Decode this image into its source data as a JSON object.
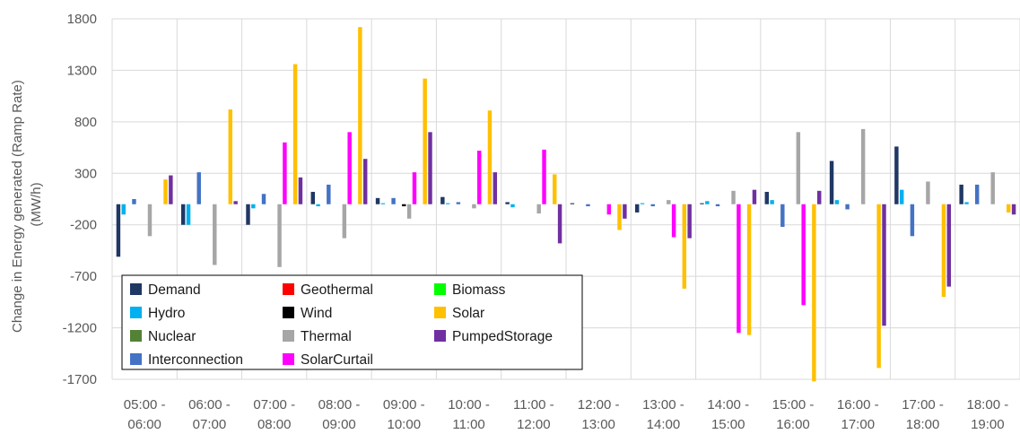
{
  "chart_data": {
    "type": "bar",
    "ylabel_lines": [
      "Change in Energy generated (Ramp Rate)",
      "(MW/h)"
    ],
    "ylim": [
      -1700,
      1800
    ],
    "yticks": [
      1800,
      1300,
      800,
      300,
      -200,
      -700,
      -1200,
      -1700
    ],
    "grid": true,
    "legend_position": "bottom-left",
    "categories": [
      [
        "05:00 -",
        "06:00"
      ],
      [
        "06:00 -",
        "07:00"
      ],
      [
        "07:00 -",
        "08:00"
      ],
      [
        "08:00 -",
        "09:00"
      ],
      [
        "09:00 -",
        "10:00"
      ],
      [
        "10:00 -",
        "11:00"
      ],
      [
        "11:00 -",
        "12:00"
      ],
      [
        "12:00 -",
        "13:00"
      ],
      [
        "13:00 -",
        "14:00"
      ],
      [
        "14:00 -",
        "15:00"
      ],
      [
        "15:00 -",
        "16:00"
      ],
      [
        "16:00 -",
        "17:00"
      ],
      [
        "17:00 -",
        "18:00"
      ],
      [
        "18:00 -",
        "19:00"
      ]
    ],
    "series": [
      {
        "name": "Demand",
        "color": "#1f3864",
        "values": [
          -510,
          -200,
          -200,
          120,
          60,
          70,
          20,
          10,
          -80,
          10,
          120,
          420,
          560,
          190
        ]
      },
      {
        "name": "Hydro",
        "color": "#00b0f0",
        "values": [
          -100,
          -200,
          -40,
          -20,
          10,
          10,
          -30,
          0,
          10,
          30,
          40,
          40,
          140,
          20
        ]
      },
      {
        "name": "Nuclear",
        "color": "#548235",
        "values": [
          0,
          0,
          0,
          0,
          0,
          0,
          0,
          0,
          0,
          0,
          0,
          0,
          0,
          0
        ]
      },
      {
        "name": "Interconnection",
        "color": "#4472c4",
        "values": [
          50,
          310,
          100,
          190,
          60,
          20,
          0,
          -20,
          -20,
          -20,
          -220,
          -50,
          -310,
          190
        ]
      },
      {
        "name": "Geothermal",
        "color": "#ff0000",
        "values": [
          0,
          0,
          0,
          0,
          0,
          0,
          0,
          0,
          0,
          0,
          0,
          0,
          0,
          0
        ]
      },
      {
        "name": "Wind",
        "color": "#000000",
        "values": [
          0,
          0,
          0,
          0,
          -20,
          0,
          0,
          0,
          0,
          0,
          0,
          0,
          0,
          0
        ]
      },
      {
        "name": "Thermal",
        "color": "#a6a6a6",
        "values": [
          -310,
          -590,
          -610,
          -330,
          -140,
          -40,
          -90,
          0,
          40,
          130,
          700,
          730,
          220,
          310
        ]
      },
      {
        "name": "SolarCurtail",
        "color": "#ff00ff",
        "values": [
          0,
          0,
          600,
          700,
          310,
          520,
          530,
          -100,
          -320,
          -1250,
          -980,
          0,
          0,
          0
        ]
      },
      {
        "name": "Biomass",
        "color": "#00ff00",
        "values": [
          0,
          0,
          0,
          0,
          0,
          0,
          0,
          0,
          0,
          0,
          0,
          0,
          0,
          0
        ]
      },
      {
        "name": "Solar",
        "color": "#ffc000",
        "values": [
          240,
          920,
          1360,
          1720,
          1220,
          910,
          290,
          -250,
          -820,
          -1270,
          -1720,
          -1590,
          -900,
          -80
        ]
      },
      {
        "name": "PumpedStorage",
        "color": "#7030a0",
        "values": [
          280,
          30,
          260,
          440,
          700,
          310,
          -380,
          -140,
          -330,
          140,
          130,
          -1180,
          -800,
          -100
        ]
      }
    ],
    "legend": [
      "Demand",
      "Geothermal",
      "Biomass",
      "Hydro",
      "Wind",
      "Solar",
      "Nuclear",
      "Thermal",
      "PumpedStorage",
      "Interconnection",
      "SolarCurtail"
    ]
  }
}
